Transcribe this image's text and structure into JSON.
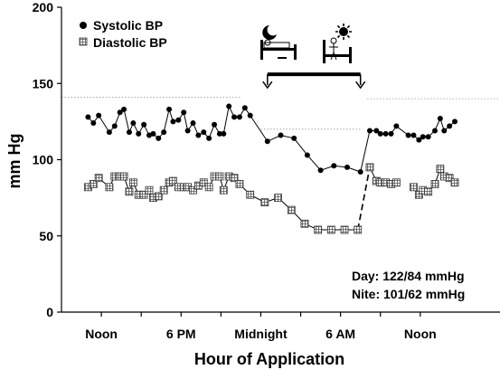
{
  "chart_data": {
    "type": "line",
    "title": "",
    "xlabel": "Hour of Application",
    "ylabel": "mm Hg",
    "ylim": [
      0,
      200
    ],
    "yticks": [
      0,
      50,
      100,
      150,
      200
    ],
    "xlim": [
      0,
      33
    ],
    "xticks": [
      {
        "x": 3,
        "label": "Noon"
      },
      {
        "x": 9,
        "label": "6 PM"
      },
      {
        "x": 15,
        "label": "Midnight"
      },
      {
        "x": 21,
        "label": "6 AM"
      },
      {
        "x": 27,
        "label": "Noon"
      }
    ],
    "grid": false,
    "legend_position": "top-left",
    "series": [
      {
        "name": "Systolic BP",
        "marker": "filled-circle",
        "color": "#000000",
        "segments": [
          [
            [
              2,
              128
            ],
            [
              2.4,
              124
            ],
            [
              2.8,
              129
            ],
            [
              3.6,
              118
            ],
            [
              4.0,
              122
            ],
            [
              4.4,
              131
            ],
            [
              4.7,
              133
            ],
            [
              5.1,
              118
            ],
            [
              5.4,
              124
            ],
            [
              5.8,
              117
            ],
            [
              6.2,
              123
            ],
            [
              6.6,
              116
            ],
            [
              6.9,
              117
            ],
            [
              7.3,
              114
            ],
            [
              7.7,
              118
            ],
            [
              8.1,
              133
            ],
            [
              8.4,
              125
            ],
            [
              8.8,
              126
            ],
            [
              9.2,
              131
            ],
            [
              9.5,
              119
            ],
            [
              9.9,
              124
            ],
            [
              10.3,
              116
            ],
            [
              10.7,
              118
            ],
            [
              11.1,
              114
            ],
            [
              11.5,
              123
            ],
            [
              11.9,
              117
            ],
            [
              12.2,
              117
            ],
            [
              12.6,
              135
            ],
            [
              13.0,
              128
            ],
            [
              13.4,
              128
            ],
            [
              13.8,
              134
            ],
            [
              14.2,
              129
            ]
          ],
          [
            [
              15.5,
              112
            ],
            [
              16.5,
              116
            ],
            [
              17.5,
              114
            ],
            [
              18.5,
              103
            ],
            [
              19.5,
              93
            ],
            [
              20.5,
              96
            ],
            [
              21.5,
              95
            ],
            [
              22.5,
              92
            ]
          ],
          [
            [
              23.2,
              119
            ],
            [
              23.7,
              119
            ],
            [
              24.0,
              117
            ],
            [
              24.4,
              117
            ],
            [
              24.8,
              117
            ],
            [
              25.2,
              122
            ],
            [
              26.1,
              116
            ],
            [
              26.5,
              116
            ],
            [
              26.9,
              113
            ],
            [
              27.2,
              115
            ],
            [
              27.6,
              115
            ],
            [
              28.1,
              119
            ],
            [
              28.5,
              127
            ],
            [
              28.8,
              119
            ],
            [
              29.2,
              122
            ],
            [
              29.6,
              125
            ]
          ]
        ],
        "bridges": [
          {
            "from": [
              14.2,
              129
            ],
            "to": [
              15.5,
              112
            ],
            "style": "solid"
          },
          {
            "from": [
              22.5,
              92
            ],
            "to": [
              23.2,
              119
            ],
            "style": "solid"
          }
        ]
      },
      {
        "name": "Diastolic BP",
        "marker": "hatched-square",
        "color": "#000000",
        "segments": [
          [
            [
              2,
              82
            ],
            [
              2.4,
              84
            ],
            [
              2.8,
              88
            ],
            [
              3.6,
              82
            ],
            [
              4.0,
              89
            ],
            [
              4.4,
              89
            ],
            [
              4.7,
              89
            ],
            [
              5.1,
              79
            ],
            [
              5.4,
              85
            ],
            [
              5.8,
              77
            ],
            [
              6.2,
              77
            ],
            [
              6.6,
              80
            ],
            [
              6.9,
              75
            ],
            [
              7.3,
              76
            ],
            [
              7.7,
              80
            ],
            [
              8.1,
              85
            ],
            [
              8.4,
              86
            ],
            [
              8.8,
              82
            ],
            [
              9.2,
              82
            ],
            [
              9.5,
              82
            ],
            [
              9.9,
              80
            ],
            [
              10.3,
              83
            ],
            [
              10.7,
              85
            ],
            [
              11.1,
              82
            ],
            [
              11.5,
              89
            ],
            [
              11.9,
              89
            ],
            [
              12.2,
              80
            ],
            [
              12.6,
              89
            ],
            [
              13.0,
              88
            ],
            [
              13.4,
              84
            ]
          ],
          [
            [
              14.2,
              77
            ],
            [
              15.3,
              72
            ],
            [
              16.3,
              75
            ],
            [
              17.3,
              67
            ],
            [
              18.3,
              58
            ],
            [
              19.3,
              54
            ],
            [
              20.3,
              54
            ],
            [
              21.3,
              54
            ],
            [
              22.3,
              54
            ]
          ],
          [
            [
              23.7,
              86
            ],
            [
              24.0,
              85
            ],
            [
              24.4,
              85
            ],
            [
              24.8,
              84
            ],
            [
              25.2,
              85
            ]
          ],
          [
            [
              26.5,
              82
            ],
            [
              26.9,
              77
            ],
            [
              27.2,
              80
            ],
            [
              27.6,
              79
            ],
            [
              28.1,
              84
            ],
            [
              28.5,
              94
            ],
            [
              28.8,
              89
            ],
            [
              29.2,
              88
            ],
            [
              29.6,
              85
            ]
          ]
        ],
        "bridges": [
          {
            "from": [
              13.4,
              84
            ],
            "to": [
              14.2,
              77
            ],
            "style": "solid"
          },
          {
            "from": [
              22.3,
              54
            ],
            "to": [
              23.2,
              95
            ],
            "style": "dashed"
          },
          {
            "from": [
              23.2,
              95
            ],
            "to": [
              23.7,
              86
            ],
            "style": "solid"
          }
        ],
        "isolated_points": [
          [
            23.2,
            95
          ]
        ]
      }
    ],
    "reference_lines": [
      {
        "y": 141,
        "x_from": 0,
        "x_to": 13.5,
        "style": "dotted"
      },
      {
        "y": 120,
        "x_from": 15,
        "x_to": 22.5,
        "style": "dotted"
      },
      {
        "y": 140,
        "x_from": 23,
        "x_to": 33,
        "style": "dotted"
      }
    ],
    "annotations": {
      "sleep_bracket": {
        "from_x": 15.5,
        "to_x": 22.5,
        "y": 156,
        "icons": [
          "moon-icon",
          "bed-icon",
          "sun-icon",
          "waking-person-icon"
        ]
      },
      "summary_lines": [
        "Day: 122/84 mmHg",
        "Nite: 101/62 mmHg"
      ]
    }
  }
}
